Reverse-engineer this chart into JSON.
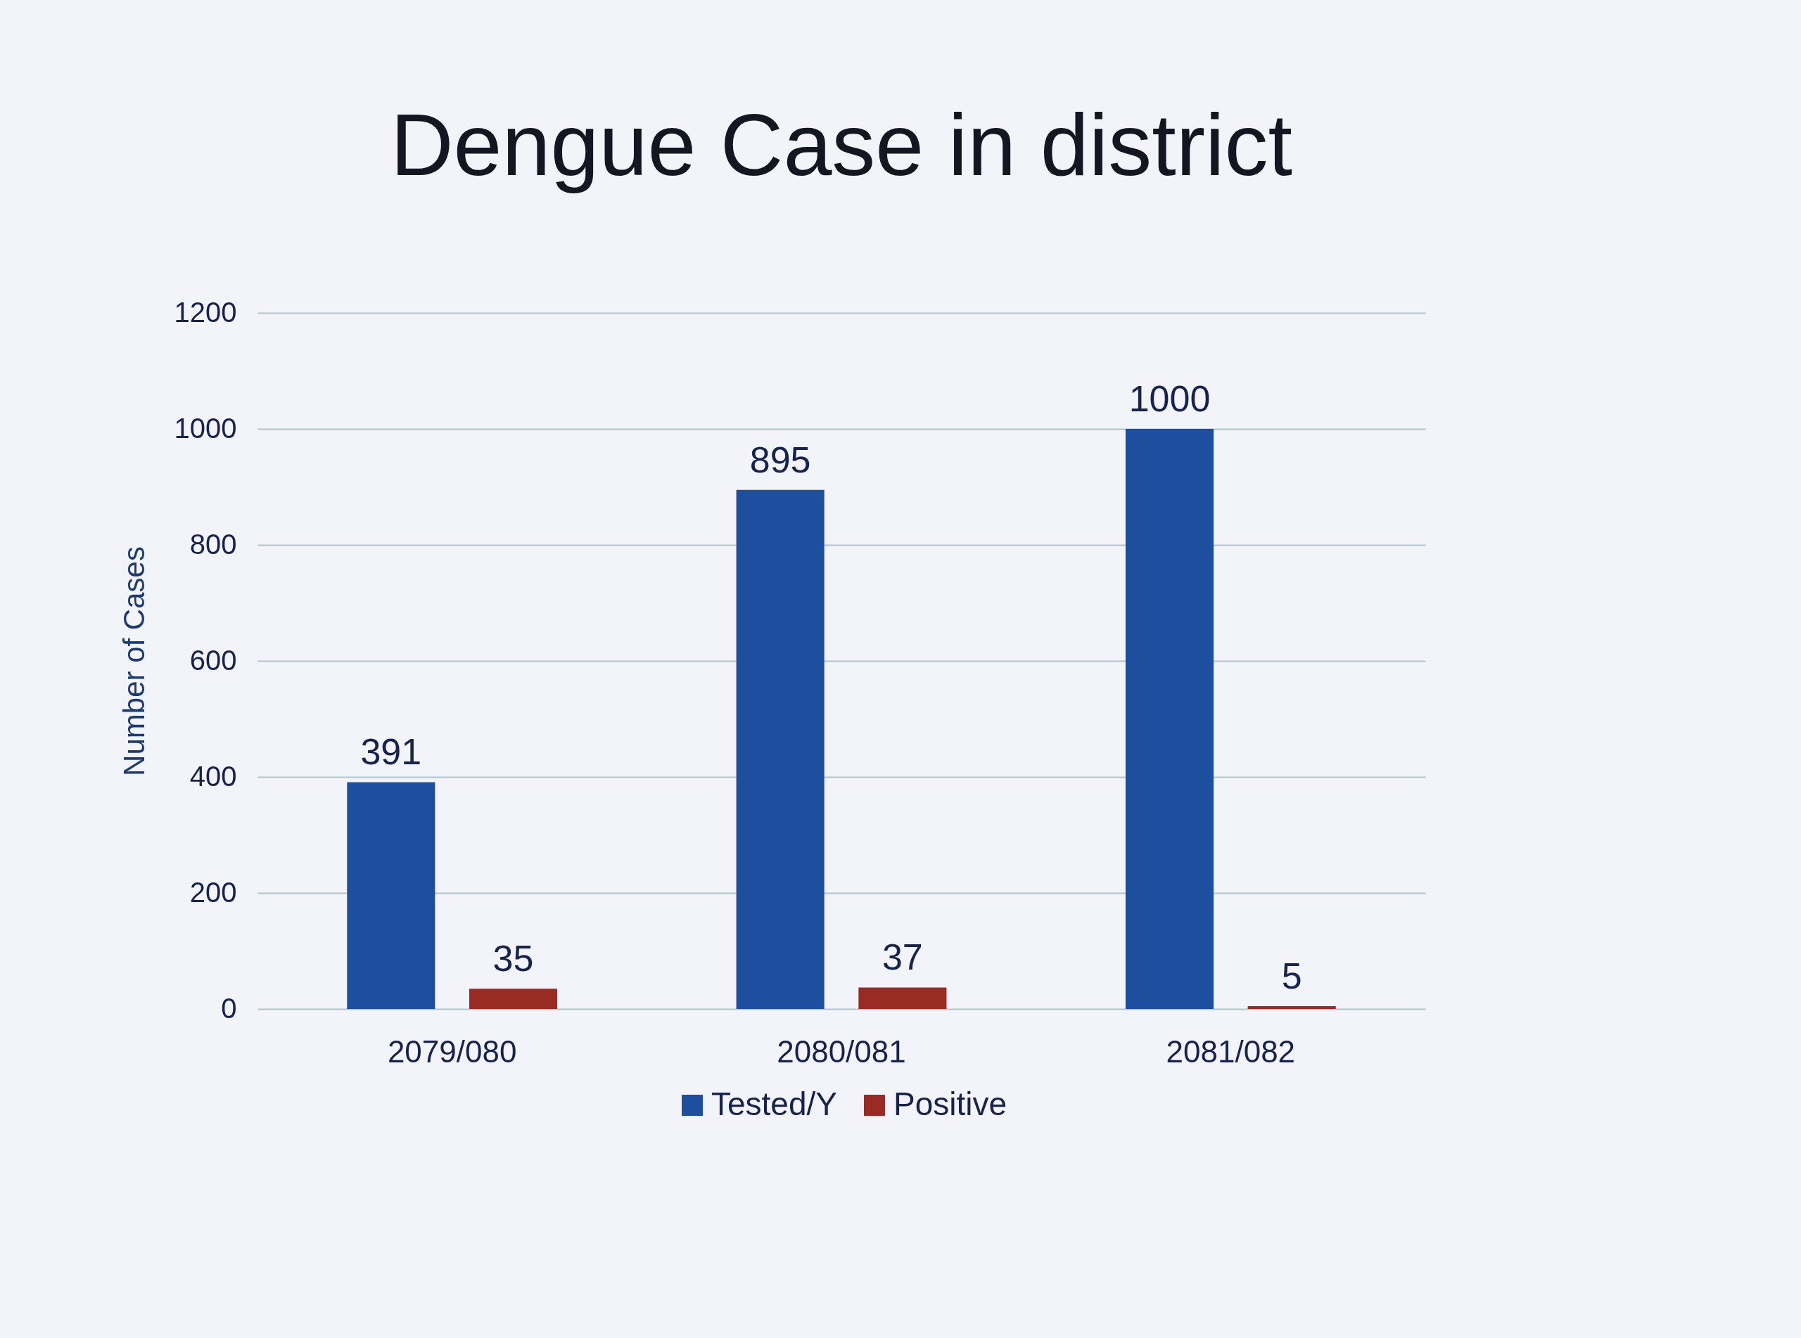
{
  "chart_data": {
    "type": "bar",
    "title": "Dengue Case in district",
    "ylabel": "Number of Cases",
    "categories": [
      "2079/080",
      "2080/081",
      "2081/082"
    ],
    "series": [
      {
        "name": "Tested/Y",
        "color": "#1d4f9e",
        "values": [
          391,
          895,
          1000
        ]
      },
      {
        "name": "Positive",
        "color": "#9a2b24",
        "values": [
          35,
          37,
          5
        ]
      }
    ],
    "ylim": [
      0,
      1200
    ],
    "yticks": [
      0,
      200,
      400,
      600,
      800,
      1000,
      1200
    ],
    "grid": "y",
    "legend": "bottom",
    "data_labels": true
  }
}
